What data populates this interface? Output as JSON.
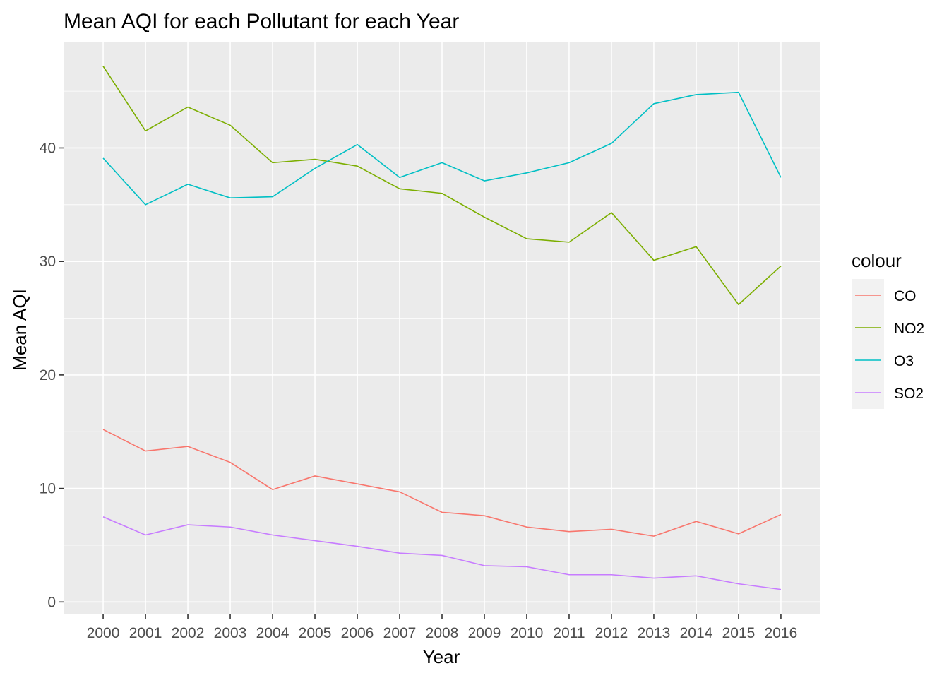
{
  "chart_data": {
    "type": "line",
    "title": "Mean AQI for each Pollutant for each Year",
    "xlabel": "Year",
    "ylabel": "Mean AQI",
    "x": [
      2000,
      2001,
      2002,
      2003,
      2004,
      2005,
      2006,
      2007,
      2008,
      2009,
      2010,
      2011,
      2012,
      2013,
      2014,
      2015,
      2016
    ],
    "x_tick_labels": [
      "2000",
      "2001",
      "2002",
      "2003",
      "2004",
      "2005",
      "2006",
      "2007",
      "2008",
      "2009",
      "2010",
      "2011",
      "2012",
      "2013",
      "2014",
      "2015",
      "2016"
    ],
    "y_ticks": [
      0,
      10,
      20,
      30,
      40
    ],
    "ylim": [
      -1.1,
      49.3
    ],
    "grid": true,
    "legend": {
      "title": "colour",
      "position": "right"
    },
    "series": [
      {
        "name": "CO",
        "color": "#F8766D",
        "values": [
          15.2,
          13.3,
          13.7,
          12.3,
          9.9,
          11.1,
          10.4,
          9.7,
          7.9,
          7.6,
          6.6,
          6.2,
          6.4,
          5.8,
          7.1,
          6.0,
          7.7
        ]
      },
      {
        "name": "NO2",
        "color": "#7CAE00",
        "values": [
          47.2,
          41.5,
          43.6,
          42.0,
          38.7,
          39.0,
          38.4,
          36.4,
          36.0,
          33.9,
          32.0,
          31.7,
          34.3,
          30.1,
          31.3,
          26.2,
          29.6
        ]
      },
      {
        "name": "O3",
        "color": "#00BFC4",
        "values": [
          39.1,
          35.0,
          36.8,
          35.6,
          35.7,
          38.2,
          40.3,
          37.4,
          38.7,
          37.1,
          37.8,
          38.7,
          40.4,
          43.9,
          44.7,
          44.9,
          37.4
        ]
      },
      {
        "name": "SO2",
        "color": "#C77CFF",
        "values": [
          7.5,
          5.9,
          6.8,
          6.6,
          5.9,
          5.4,
          4.9,
          4.3,
          4.1,
          3.2,
          3.1,
          2.4,
          2.4,
          2.1,
          2.3,
          1.6,
          1.1
        ]
      }
    ]
  }
}
